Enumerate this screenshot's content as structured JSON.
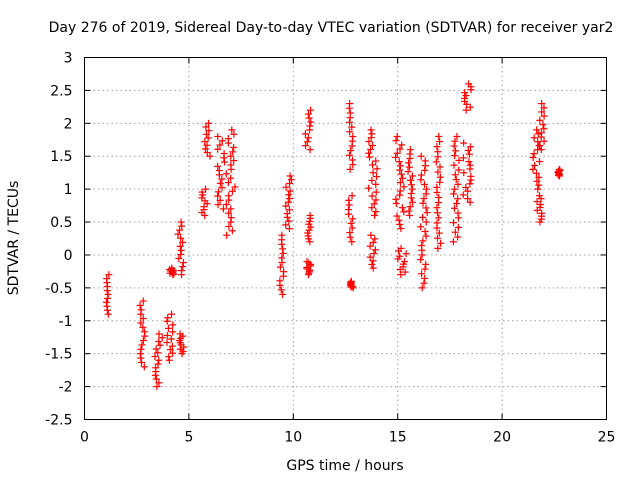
{
  "chart_data": {
    "type": "scatter",
    "title": "Day 276 of 2019, Sidereal Day-to-day VTEC variation (SDTVAR) for receiver yar2",
    "xlabel": "GPS time / hours",
    "ylabel": "SDTVAR / TECUs",
    "xlim": [
      0,
      25
    ],
    "ylim": [
      -2.5,
      3
    ],
    "xticks": [
      0,
      5,
      10,
      15,
      20,
      25
    ],
    "yticks": [
      -2.5,
      -2,
      -1.5,
      -1,
      -0.5,
      0,
      0.5,
      1,
      1.5,
      2,
      2.5,
      3
    ],
    "grid": true,
    "marker": "plus",
    "color": "#ff0000",
    "clusters": [
      {
        "x": [
          0.9,
          1.3
        ],
        "y": [
          -0.9,
          -0.3
        ]
      },
      {
        "x": [
          2.6,
          3.0
        ],
        "y": [
          -1.7,
          -0.7
        ]
      },
      {
        "x": [
          3.3,
          3.8
        ],
        "y": [
          -2.0,
          -1.2
        ]
      },
      {
        "x": [
          3.8,
          4.4
        ],
        "y": [
          -1.6,
          -0.9
        ]
      },
      {
        "x": [
          4.4,
          4.9
        ],
        "y": [
          -1.5,
          -1.2
        ]
      },
      {
        "x": [
          4.0,
          4.4
        ],
        "y": [
          -0.3,
          -0.2
        ]
      },
      {
        "x": [
          4.4,
          4.8
        ],
        "y": [
          -0.3,
          0.5
        ]
      },
      {
        "x": [
          5.5,
          6.0
        ],
        "y": [
          0.6,
          1.0
        ]
      },
      {
        "x": [
          5.7,
          6.1
        ],
        "y": [
          1.5,
          2.0
        ]
      },
      {
        "x": [
          6.3,
          6.8
        ],
        "y": [
          0.7,
          1.8
        ]
      },
      {
        "x": [
          6.7,
          7.3
        ],
        "y": [
          0.3,
          1.9
        ]
      },
      {
        "x": [
          9.3,
          9.6
        ],
        "y": [
          -0.6,
          0.3
        ]
      },
      {
        "x": [
          9.5,
          10.0
        ],
        "y": [
          0.4,
          1.2
        ]
      },
      {
        "x": [
          10.5,
          10.9
        ],
        "y": [
          1.6,
          2.2
        ]
      },
      {
        "x": [
          10.6,
          10.9
        ],
        "y": [
          0.2,
          0.6
        ]
      },
      {
        "x": [
          10.6,
          10.9
        ],
        "y": [
          -0.3,
          -0.1
        ]
      },
      {
        "x": [
          12.6,
          12.9
        ],
        "y": [
          1.3,
          2.3
        ]
      },
      {
        "x": [
          12.6,
          12.9
        ],
        "y": [
          0.2,
          0.9
        ]
      },
      {
        "x": [
          12.7,
          12.9
        ],
        "y": [
          -0.5,
          -0.4
        ]
      },
      {
        "x": [
          13.5,
          14.2
        ],
        "y": [
          0.6,
          1.9
        ]
      },
      {
        "x": [
          13.6,
          14.0
        ],
        "y": [
          -0.2,
          0.3
        ]
      },
      {
        "x": [
          14.8,
          15.4
        ],
        "y": [
          0.4,
          1.8
        ]
      },
      {
        "x": [
          14.9,
          15.5
        ],
        "y": [
          -0.3,
          0.1
        ]
      },
      {
        "x": [
          15.4,
          15.8
        ],
        "y": [
          0.6,
          1.6
        ]
      },
      {
        "x": [
          16.0,
          16.5
        ],
        "y": [
          -0.5,
          1.5
        ]
      },
      {
        "x": [
          16.8,
          17.1
        ],
        "y": [
          0.1,
          1.8
        ]
      },
      {
        "x": [
          17.6,
          18.0
        ],
        "y": [
          0.2,
          1.8
        ]
      },
      {
        "x": [
          18.0,
          18.6
        ],
        "y": [
          0.8,
          1.7
        ]
      },
      {
        "x": [
          18.1,
          18.6
        ],
        "y": [
          2.2,
          2.6
        ]
      },
      {
        "x": [
          21.4,
          21.9
        ],
        "y": [
          1.0,
          1.9
        ]
      },
      {
        "x": [
          21.7,
          22.1
        ],
        "y": [
          1.6,
          2.3
        ]
      },
      {
        "x": [
          21.6,
          22.0
        ],
        "y": [
          0.5,
          0.9
        ]
      },
      {
        "x": [
          22.6,
          22.8
        ],
        "y": [
          1.2,
          1.3
        ]
      }
    ]
  }
}
